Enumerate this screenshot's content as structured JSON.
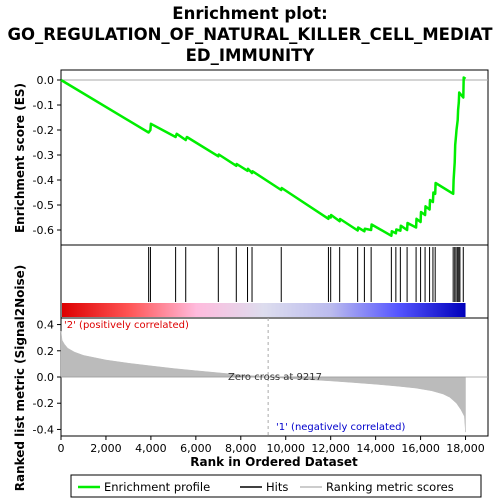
{
  "chart_data": {
    "type": "line",
    "title_lines": [
      "Enrichment plot:",
      "GO_REGULATION_OF_NATURAL_KILLER_CELL_MEDIAT",
      "ED_IMMUNITY"
    ],
    "es_panel": {
      "ylabel": "Enrichment score (ES)",
      "ylim": [
        -0.66,
        0.04
      ],
      "yticks": [
        0.0,
        -0.1,
        -0.2,
        -0.3,
        -0.4,
        -0.5,
        -0.6
      ],
      "ytick_labels": [
        "0.0",
        "-0.1",
        "-0.2",
        "-0.3",
        "-0.4",
        "-0.5",
        "-0.6"
      ],
      "series": [
        {
          "name": "Enrichment profile",
          "color": "#00ee00",
          "x": [
            0,
            3900,
            3980,
            4000,
            5100,
            5150,
            5550,
            5600,
            7000,
            7020,
            7800,
            7820,
            8300,
            8320,
            8500,
            8520,
            9800,
            9820,
            11900,
            11920,
            12000,
            12020,
            12400,
            12420,
            13200,
            13220,
            13500,
            13520,
            13800,
            13820,
            14700,
            14720,
            14900,
            14920,
            15100,
            15120,
            15400,
            15420,
            15800,
            15820,
            16000,
            16020,
            16200,
            16220,
            16400,
            16420,
            16550,
            16570,
            16650,
            16670,
            17450,
            17470,
            17520,
            17540,
            17580,
            17600,
            17650,
            17670,
            17700,
            17720,
            17900,
            17920,
            18000
          ],
          "y": [
            0.0,
            -0.21,
            -0.2,
            -0.175,
            -0.228,
            -0.215,
            -0.24,
            -0.228,
            -0.305,
            -0.298,
            -0.343,
            -0.336,
            -0.363,
            -0.355,
            -0.372,
            -0.365,
            -0.44,
            -0.432,
            -0.555,
            -0.545,
            -0.55,
            -0.54,
            -0.565,
            -0.556,
            -0.602,
            -0.59,
            -0.605,
            -0.595,
            -0.6,
            -0.578,
            -0.623,
            -0.605,
            -0.613,
            -0.598,
            -0.603,
            -0.583,
            -0.6,
            -0.572,
            -0.59,
            -0.555,
            -0.568,
            -0.528,
            -0.54,
            -0.505,
            -0.518,
            -0.48,
            -0.488,
            -0.45,
            -0.455,
            -0.412,
            -0.455,
            -0.4,
            -0.33,
            -0.26,
            -0.22,
            -0.2,
            -0.16,
            -0.12,
            -0.09,
            -0.05,
            -0.07,
            0.01,
            0.005
          ]
        }
      ]
    },
    "hits": [
      3900,
      3980,
      5100,
      5550,
      7000,
      7800,
      8300,
      8500,
      9800,
      11900,
      12000,
      12400,
      13200,
      13500,
      13800,
      14700,
      14900,
      15100,
      15400,
      15800,
      16000,
      16200,
      16400,
      16550,
      16650,
      17450,
      17520,
      17580,
      17650,
      17700,
      17750,
      17900
    ],
    "hits_color": "#000000",
    "gradient_colors": [
      "#dd0000",
      "#ff5555",
      "#ffbbdd",
      "#ddddee",
      "#bbbbee",
      "#5555ff",
      "#0000bb"
    ],
    "metric_panel": {
      "ylabel": "Ranked list metric (Signal2Noise)",
      "ylim": [
        -0.45,
        0.45
      ],
      "yticks": [
        0.4,
        0.2,
        0.0,
        -0.2,
        -0.4
      ],
      "ytick_labels": [
        "0.4",
        "0.2",
        "0.0",
        "-0.2",
        "-0.4"
      ],
      "fill_color": "#bbbbbb",
      "x": [
        0,
        50,
        150,
        300,
        600,
        1000,
        2000,
        3000,
        4000,
        5000,
        6000,
        7000,
        8000,
        9217,
        10000,
        11000,
        12000,
        13000,
        14000,
        15000,
        15800,
        16500,
        17000,
        17300,
        17600,
        17800,
        17950,
        18000
      ],
      "y": [
        0.35,
        0.28,
        0.25,
        0.22,
        0.19,
        0.165,
        0.13,
        0.105,
        0.085,
        0.065,
        0.048,
        0.032,
        0.016,
        0.0,
        -0.01,
        -0.02,
        -0.03,
        -0.042,
        -0.055,
        -0.07,
        -0.085,
        -0.105,
        -0.13,
        -0.155,
        -0.2,
        -0.25,
        -0.3,
        -0.42
      ]
    },
    "zero_cross": 9217,
    "zero_cross_label": "Zero cross at 9217",
    "pos_label": "'2' (positively correlated)",
    "pos_color": "#dd0000",
    "neg_label": "'1' (negatively correlated)",
    "neg_color": "#0000cc",
    "xlabel": "Rank in Ordered Dataset",
    "xlim": [
      0,
      19000
    ],
    "xticks": [
      0,
      2000,
      4000,
      6000,
      8000,
      10000,
      12000,
      14000,
      16000,
      18000
    ],
    "xtick_labels": [
      "0",
      "2,000",
      "4,000",
      "6,000",
      "8,000",
      "10,000",
      "12,000",
      "14,000",
      "16,000",
      "18,000"
    ],
    "legend": [
      "Enrichment profile",
      "Hits",
      "Ranking metric scores"
    ],
    "legend_placement": "bottom"
  }
}
